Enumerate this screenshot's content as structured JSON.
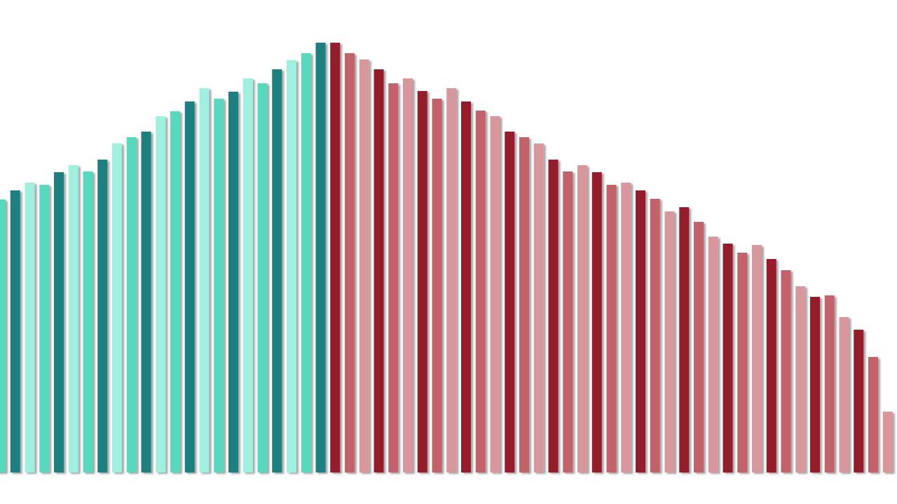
{
  "chart_data": {
    "type": "bar",
    "values": [
      390,
      403,
      414,
      411,
      429,
      439,
      430,
      447,
      470,
      479,
      487,
      509,
      516,
      530,
      549,
      534,
      544,
      563,
      556,
      576,
      589,
      599,
      614,
      614,
      599,
      590,
      576,
      556,
      563,
      545,
      534,
      549,
      530,
      517,
      509,
      487,
      479,
      470,
      447,
      430,
      439,
      429,
      411,
      414,
      403,
      391,
      373,
      379,
      358,
      337,
      327,
      314,
      325,
      305,
      289,
      266,
      251,
      253,
      222,
      204,
      165,
      87
    ],
    "colors": [
      "#57d9bc",
      "#1e8080",
      "#a0f0e0",
      "#57d9bc",
      "#1e8080",
      "#a0f0e0",
      "#57d9bc",
      "#1e8080",
      "#a0f0e0",
      "#57d9bc",
      "#1e8080",
      "#a0f0e0",
      "#57d9bc",
      "#1e8080",
      "#a0f0e0",
      "#57d9bc",
      "#1e8080",
      "#a0f0e0",
      "#57d9bc",
      "#1e8080",
      "#a0f0e0",
      "#57d9bc",
      "#1e8080",
      "#951b2b",
      "#c4626c",
      "#d8979d",
      "#951b2b",
      "#c4626c",
      "#d8979d",
      "#951b2b",
      "#c4626c",
      "#d8979d",
      "#951b2b",
      "#c4626c",
      "#d8979d",
      "#951b2b",
      "#c4626c",
      "#d8979d",
      "#951b2b",
      "#c4626c",
      "#d8979d",
      "#951b2b",
      "#c4626c",
      "#d8979d",
      "#951b2b",
      "#c4626c",
      "#d8979d",
      "#951b2b",
      "#c4626c",
      "#d8979d",
      "#951b2b",
      "#c4626c",
      "#d8979d",
      "#951b2b",
      "#c4626c",
      "#d8979d",
      "#951b2b",
      "#c4626c",
      "#d8979d",
      "#951b2b",
      "#c4626c",
      "#d8979d"
    ],
    "ylim": [
      0,
      620
    ]
  }
}
